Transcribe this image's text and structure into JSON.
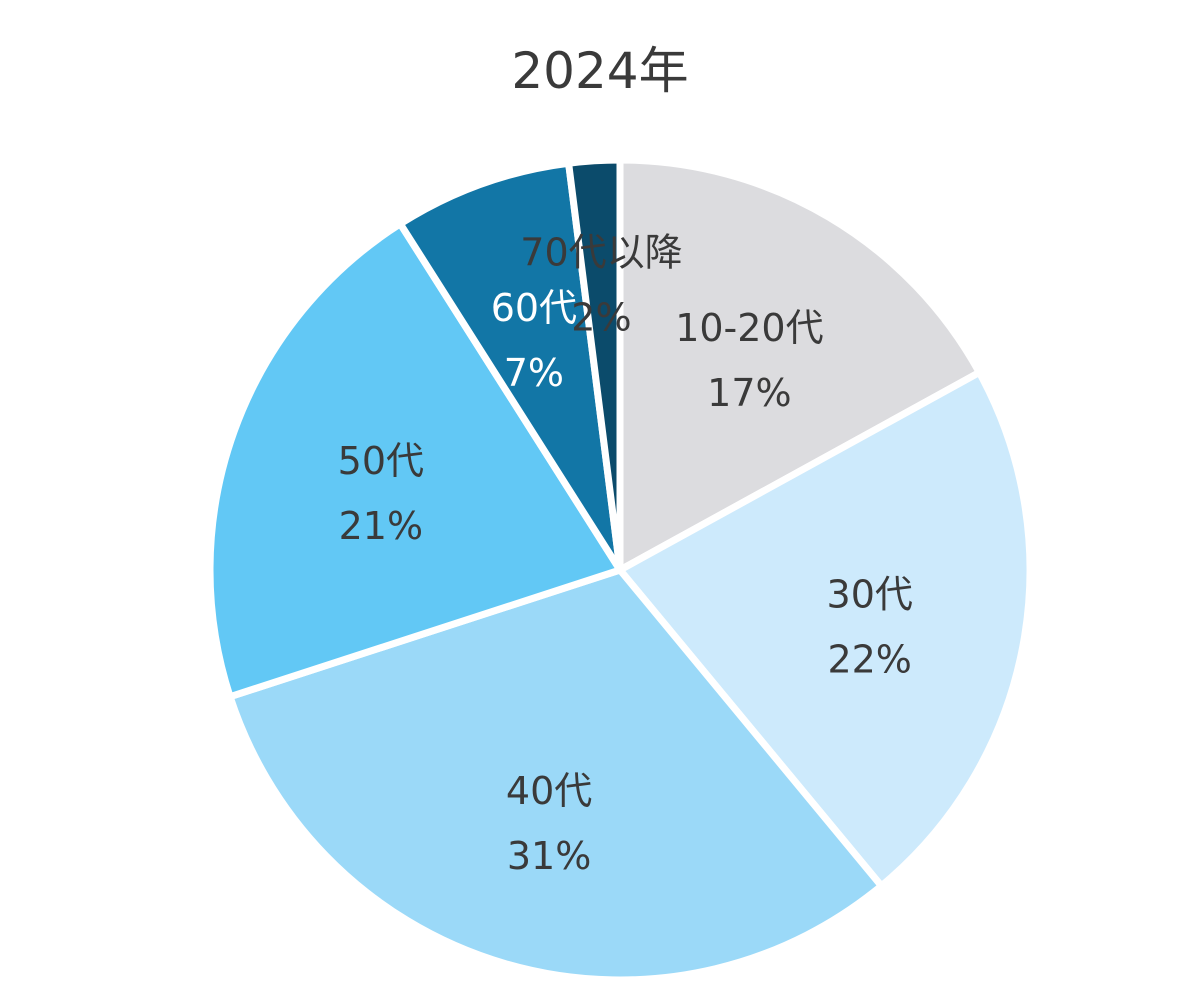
{
  "chart_data": {
    "type": "pie",
    "title": "2024年",
    "slices": [
      {
        "label": "10-20代",
        "value": 17,
        "value_label": "17%",
        "color": "#dcdcdf",
        "text_color": "#3a3a3a"
      },
      {
        "label": "30代",
        "value": 22,
        "value_label": "22%",
        "color": "#cdeafc",
        "text_color": "#3a3a3a"
      },
      {
        "label": "40代",
        "value": 31,
        "value_label": "31%",
        "color": "#9bd9f8",
        "text_color": "#3a3a3a"
      },
      {
        "label": "50代",
        "value": 21,
        "value_label": "21%",
        "color": "#62c8f5",
        "text_color": "#3a3a3a"
      },
      {
        "label": "60代",
        "value": 7,
        "value_label": "7%",
        "color": "#1276a6",
        "text_color": "#ffffff"
      },
      {
        "label": "70代以降",
        "value": 2,
        "value_label": "2%",
        "color": "#0b4b6b",
        "text_color": "#3a3a3a"
      }
    ],
    "start": "12 o'clock",
    "direction": "clockwise",
    "legend": "none"
  }
}
